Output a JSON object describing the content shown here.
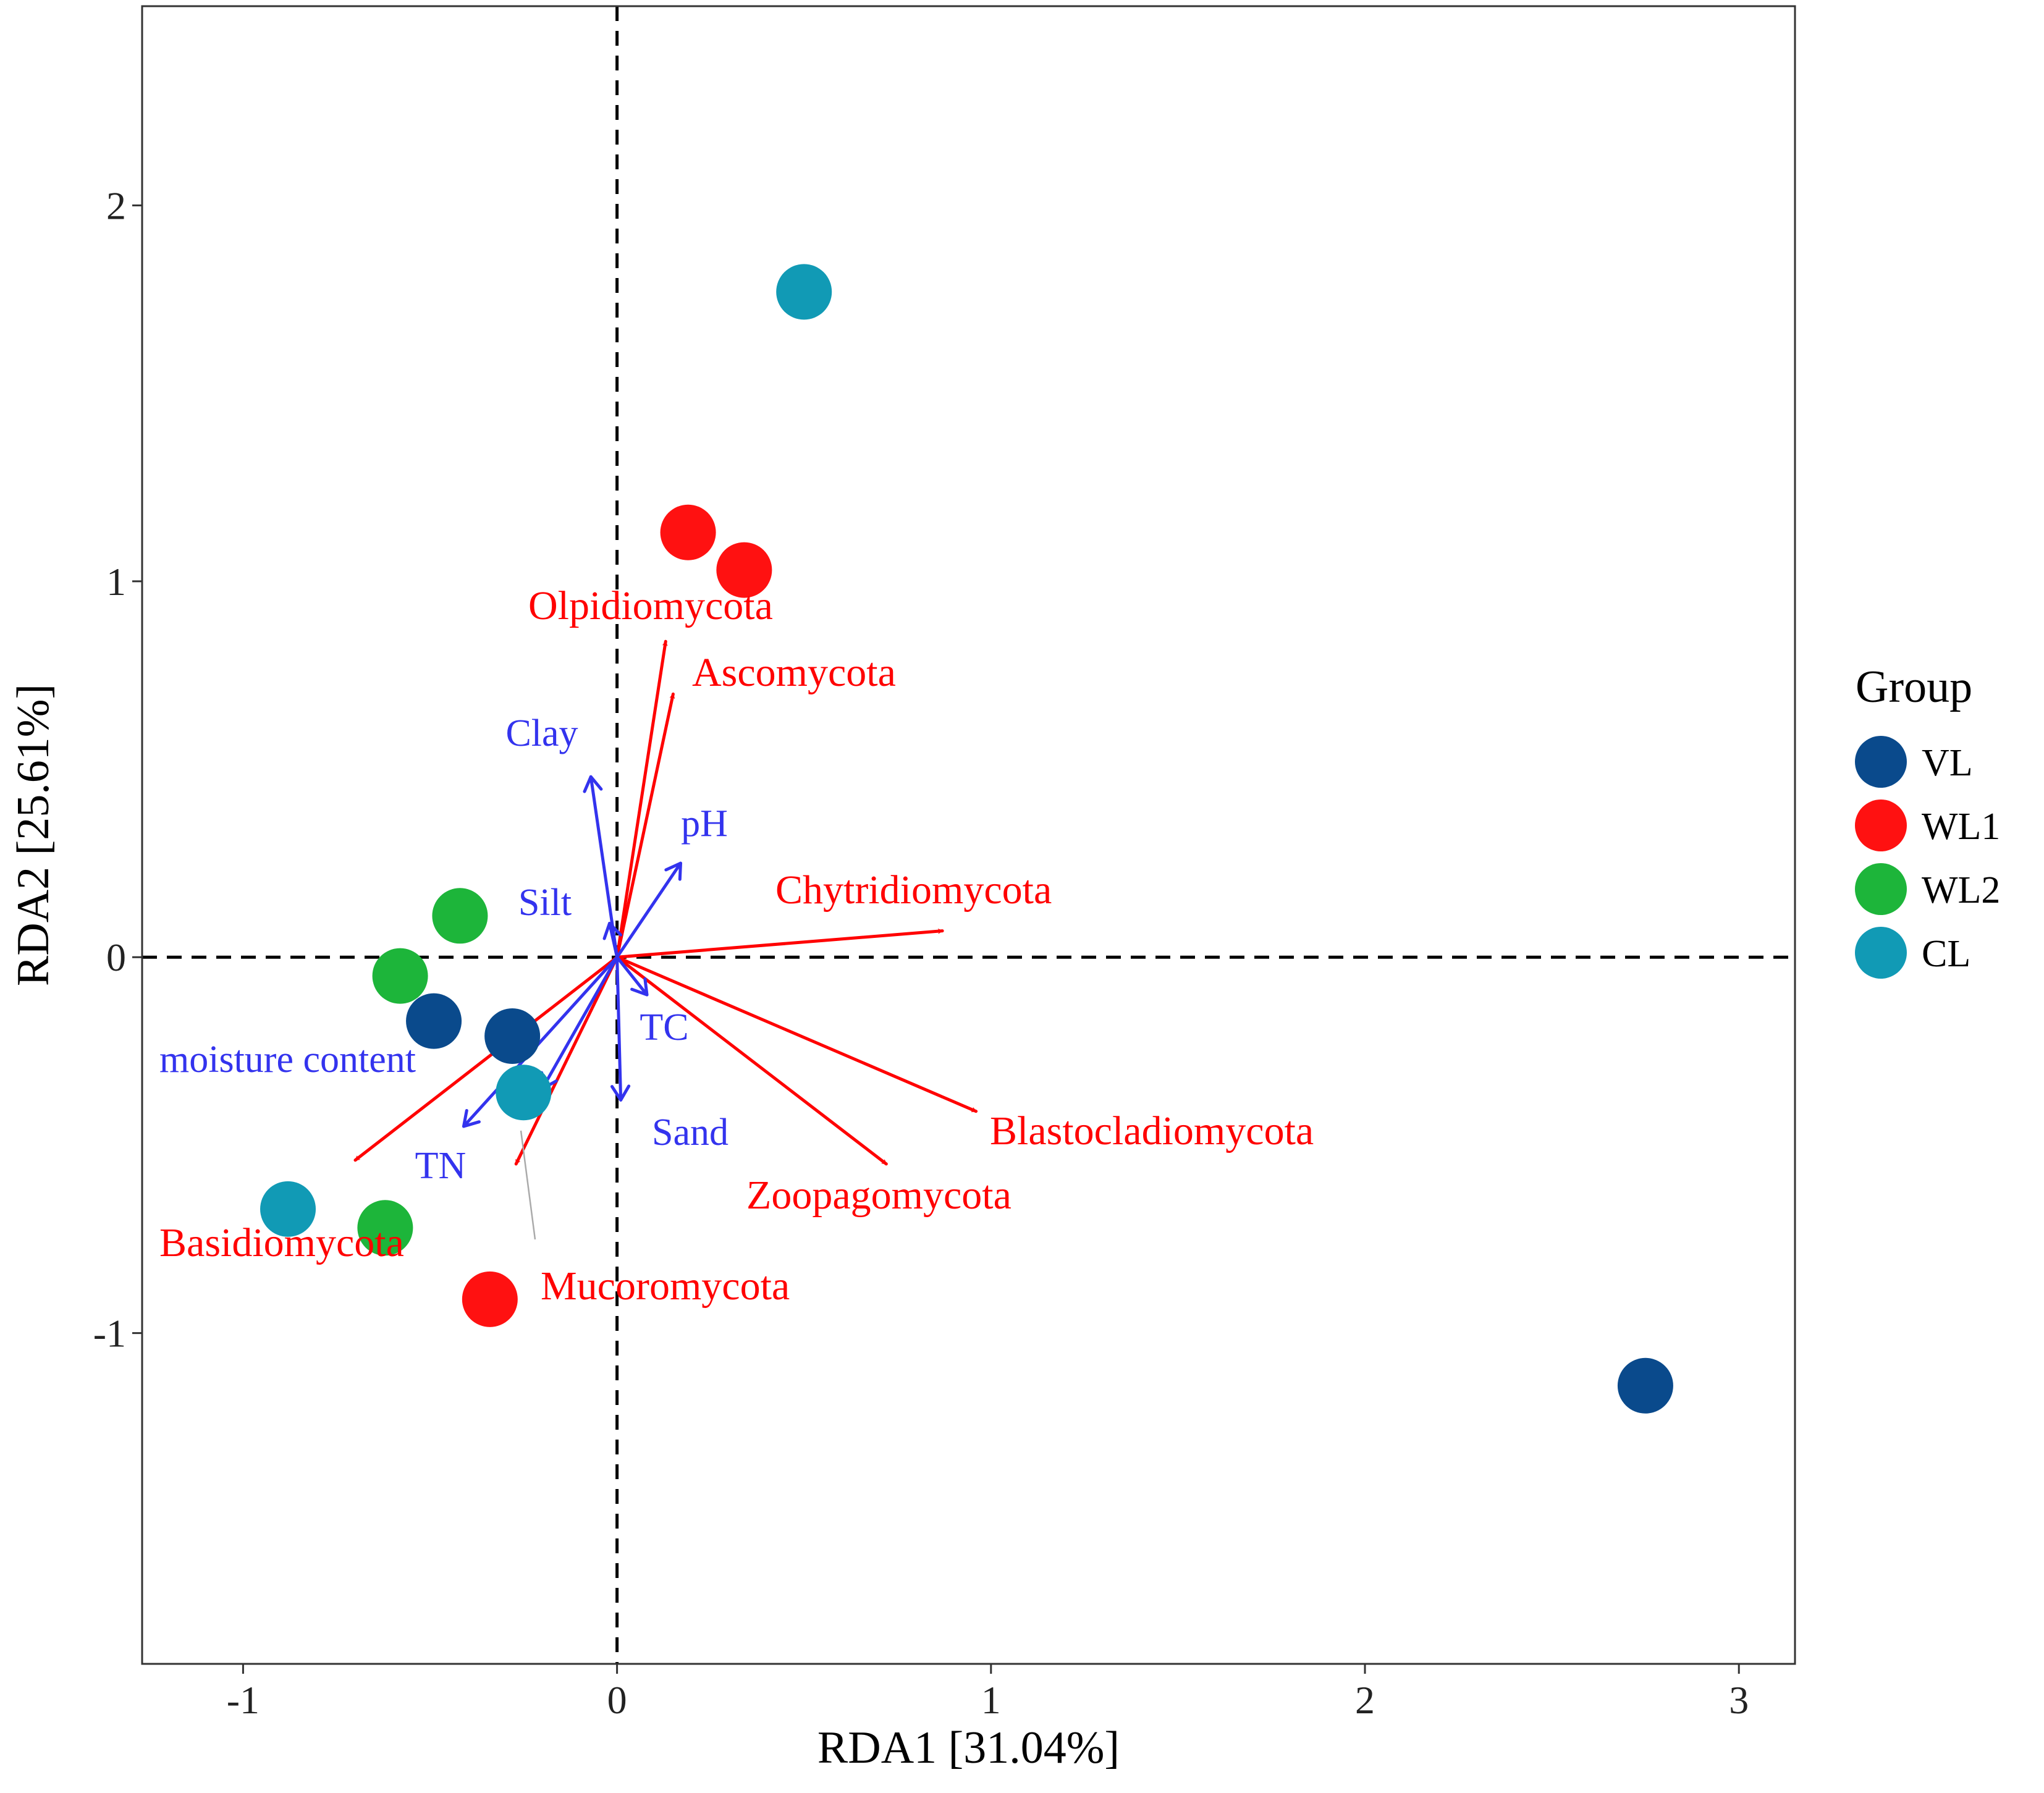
{
  "chart_data": {
    "type": "scatter",
    "subtype": "RDA biplot",
    "title": "",
    "xlabel": "RDA1 [31.04%]",
    "ylabel": "RDA2 [25.61%]",
    "xlim": [
      -1.27,
      3.15
    ],
    "ylim": [
      -1.88,
      2.53
    ],
    "xticks": [
      -1,
      0,
      1,
      2,
      3
    ],
    "yticks": [
      -1,
      0,
      1,
      2
    ],
    "grid": false,
    "reference_lines": {
      "x": 0,
      "y": 0,
      "style": "dashed"
    },
    "legend": {
      "title": "Group",
      "position": "right",
      "entries": [
        {
          "name": "VL",
          "color": "#0a4a8c"
        },
        {
          "name": "WL1",
          "color": "#ff1111"
        },
        {
          "name": "WL2",
          "color": "#1db53a"
        },
        {
          "name": "CL",
          "color": "#119ab5"
        }
      ]
    },
    "points": [
      {
        "group": "VL",
        "x": -0.49,
        "y": -0.17
      },
      {
        "group": "VL",
        "x": -0.28,
        "y": -0.21
      },
      {
        "group": "VL",
        "x": 2.75,
        "y": -1.14
      },
      {
        "group": "WL1",
        "x": 0.19,
        "y": 1.13
      },
      {
        "group": "WL1",
        "x": 0.34,
        "y": 1.03
      },
      {
        "group": "WL1",
        "x": -0.34,
        "y": -0.91
      },
      {
        "group": "WL2",
        "x": -0.42,
        "y": 0.11
      },
      {
        "group": "WL2",
        "x": -0.58,
        "y": -0.05
      },
      {
        "group": "WL2",
        "x": -0.62,
        "y": -0.72
      },
      {
        "group": "CL",
        "x": 0.5,
        "y": 1.77
      },
      {
        "group": "CL",
        "x": -0.25,
        "y": -0.36
      },
      {
        "group": "CL",
        "x": -0.88,
        "y": -0.67
      }
    ],
    "species_arrows": {
      "color": "#ff0000",
      "items": [
        {
          "name": "Olpidiomycota",
          "x": 0.13,
          "y": 0.84
        },
        {
          "name": "Ascomycota",
          "x": 0.15,
          "y": 0.7
        },
        {
          "name": "Chytridiomycota",
          "x": 0.87,
          "y": 0.07
        },
        {
          "name": "Blastocladiomycota",
          "x": 0.96,
          "y": -0.41
        },
        {
          "name": "Zoopagomycota",
          "x": 0.72,
          "y": -0.55
        },
        {
          "name": "Mucoromycota",
          "x": -0.27,
          "y": -0.55
        },
        {
          "name": "Basidiomycota",
          "x": -0.7,
          "y": -0.54
        }
      ]
    },
    "environment_arrows": {
      "color": "#3333ee",
      "items": [
        {
          "name": "Clay",
          "x": -0.07,
          "y": 0.48
        },
        {
          "name": "pH",
          "x": 0.17,
          "y": 0.25
        },
        {
          "name": "Silt",
          "x": -0.02,
          "y": 0.09
        },
        {
          "name": "TC",
          "x": 0.08,
          "y": -0.1
        },
        {
          "name": "Sand",
          "x": 0.01,
          "y": -0.38
        },
        {
          "name": "moisture content",
          "x": -0.2,
          "y": -0.35
        },
        {
          "name": "TN",
          "x": -0.41,
          "y": -0.45
        }
      ]
    }
  }
}
